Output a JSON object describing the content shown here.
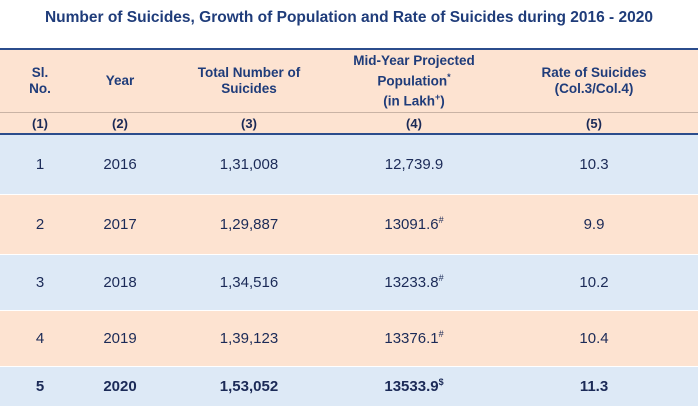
{
  "title": "Number of Suicides, Growth of Population and Rate of Suicides during 2016 - 2020",
  "table": {
    "headers": [
      [
        "Sl.",
        "No."
      ],
      [
        "Year"
      ],
      [
        "Total Number of",
        "Suicides"
      ],
      [
        "Mid-Year Projected",
        "Population",
        "*",
        "(in Lakh",
        "+",
        ")"
      ],
      [
        "Rate of Suicides",
        "(Col.3/Col.4)"
      ]
    ],
    "column_numbers": [
      "(1)",
      "(2)",
      "(3)",
      "(4)",
      "(5)"
    ],
    "rows": [
      {
        "sl": "1",
        "year": "2016",
        "suicides": "1,31,008",
        "population": "12,739.9",
        "rate": "10.3"
      },
      {
        "sl": "2",
        "year": "2017",
        "suicides": "1,29,887",
        "population": "13091.6",
        "note": "#",
        "rate": "9.9"
      },
      {
        "sl": "3",
        "year": "2018",
        "suicides": "1,34,516",
        "population": "13233.8",
        "note": "#",
        "rate": "10.2"
      },
      {
        "sl": "4",
        "year": "2019",
        "suicides": "1,39,123",
        "population": "13376.1",
        "note": "#",
        "rate": "10.4"
      },
      {
        "sl": "5",
        "year": "2020",
        "suicides": "1,53,052",
        "population": "13533.9",
        "note": "$",
        "rate": "11.3"
      }
    ]
  }
}
